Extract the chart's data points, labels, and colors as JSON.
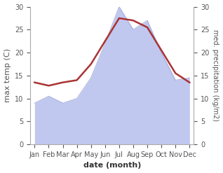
{
  "months": [
    "Jan",
    "Feb",
    "Mar",
    "Apr",
    "May",
    "Jun",
    "Jul",
    "Aug",
    "Sep",
    "Oct",
    "Nov",
    "Dec"
  ],
  "max_temp": [
    13.5,
    12.8,
    13.5,
    14.0,
    17.5,
    22.5,
    27.5,
    27.0,
    25.5,
    20.5,
    15.5,
    13.5
  ],
  "precipitation": [
    9.0,
    10.5,
    9.0,
    10.0,
    14.5,
    22.0,
    30.0,
    25.0,
    27.0,
    20.0,
    14.0,
    14.5
  ],
  "temp_color": "#aa3333",
  "precip_fill_color": "#c0c8f0",
  "precip_edge_color": "#9099cc",
  "ylim": [
    0,
    30
  ],
  "xlabel": "date (month)",
  "ylabel_left": "max temp (C)",
  "ylabel_right": "med. precipitation (kg/m2)",
  "bg_color": "#ffffff",
  "spine_color": "#aaaaaa",
  "tick_label_color": "#555555",
  "title_fontsize": 8,
  "label_fontsize": 8,
  "tick_fontsize": 7
}
